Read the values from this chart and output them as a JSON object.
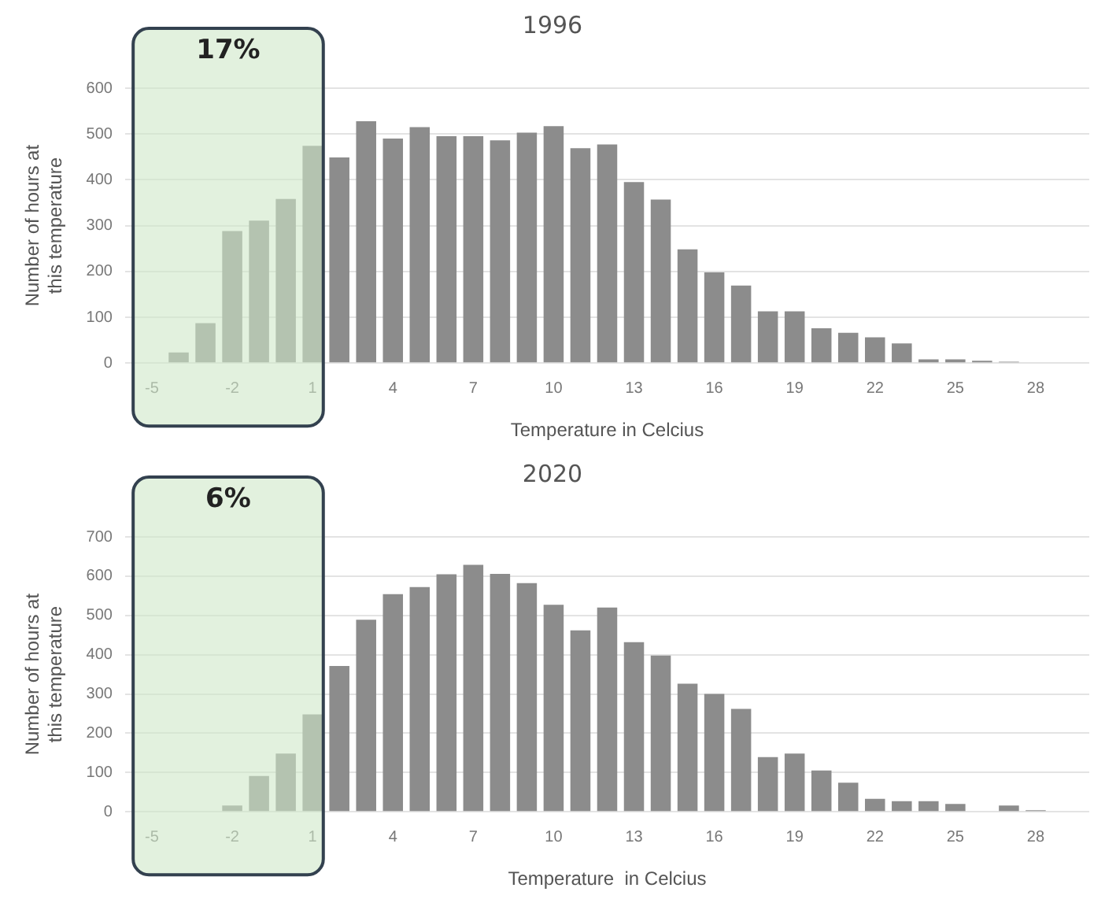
{
  "chart_data": [
    {
      "type": "bar",
      "title": "1996",
      "xlabel": "Temperature in Celcius",
      "ylabel": "Number of hours at this temperature",
      "x": [
        -5,
        -4,
        -3,
        -2,
        -1,
        0,
        1,
        2,
        3,
        4,
        5,
        6,
        7,
        8,
        9,
        10,
        11,
        12,
        13,
        14,
        15,
        16,
        17,
        18,
        19,
        20,
        21,
        22,
        23,
        24,
        25,
        26,
        27,
        28,
        29
      ],
      "values": [
        0,
        23,
        87,
        288,
        311,
        358,
        474,
        449,
        528,
        490,
        515,
        495,
        495,
        486,
        503,
        517,
        469,
        477,
        395,
        357,
        248,
        198,
        169,
        113,
        113,
        76,
        66,
        56,
        43,
        8,
        8,
        5,
        3,
        0,
        0
      ],
      "color": "#8c8c8c",
      "xlim": [
        -6,
        30
      ],
      "xticks": [
        -5,
        -2,
        1,
        4,
        7,
        10,
        13,
        16,
        19,
        22,
        25,
        28
      ],
      "ylim": [
        0,
        600
      ],
      "yticks": [
        0,
        100,
        200,
        300,
        400,
        500,
        600
      ],
      "grid": "y",
      "bands": [
        {
          "axis": "x",
          "from": -5.7,
          "to": 1.4,
          "label": "17%",
          "color": "#cfe8c8"
        }
      ]
    },
    {
      "type": "bar",
      "title": "2020",
      "xlabel": "Temperature  in Celcius",
      "ylabel": "Number of hours at this temperature",
      "x": [
        -5,
        -4,
        -3,
        -2,
        -1,
        0,
        1,
        2,
        3,
        4,
        5,
        6,
        7,
        8,
        9,
        10,
        11,
        12,
        13,
        14,
        15,
        16,
        17,
        18,
        19,
        20,
        21,
        22,
        23,
        24,
        25,
        26,
        27,
        28
      ],
      "values": [
        0,
        0,
        0,
        16,
        91,
        148,
        248,
        371,
        489,
        554,
        572,
        605,
        629,
        606,
        582,
        527,
        462,
        520,
        432,
        398,
        326,
        300,
        262,
        139,
        148,
        105,
        74,
        33,
        27,
        27,
        20,
        null,
        16,
        4
      ],
      "color": "#8c8c8c",
      "xlim": [
        -6,
        30
      ],
      "xticks": [
        -5,
        -2,
        1,
        4,
        7,
        10,
        13,
        16,
        19,
        22,
        25,
        28
      ],
      "ylim": [
        0,
        700
      ],
      "yticks": [
        0,
        100,
        200,
        300,
        400,
        500,
        600,
        700
      ],
      "grid": "y",
      "bands": [
        {
          "axis": "x",
          "from": -5.7,
          "to": 1.4,
          "label": "6%",
          "color": "#cfe8c8"
        }
      ]
    }
  ]
}
